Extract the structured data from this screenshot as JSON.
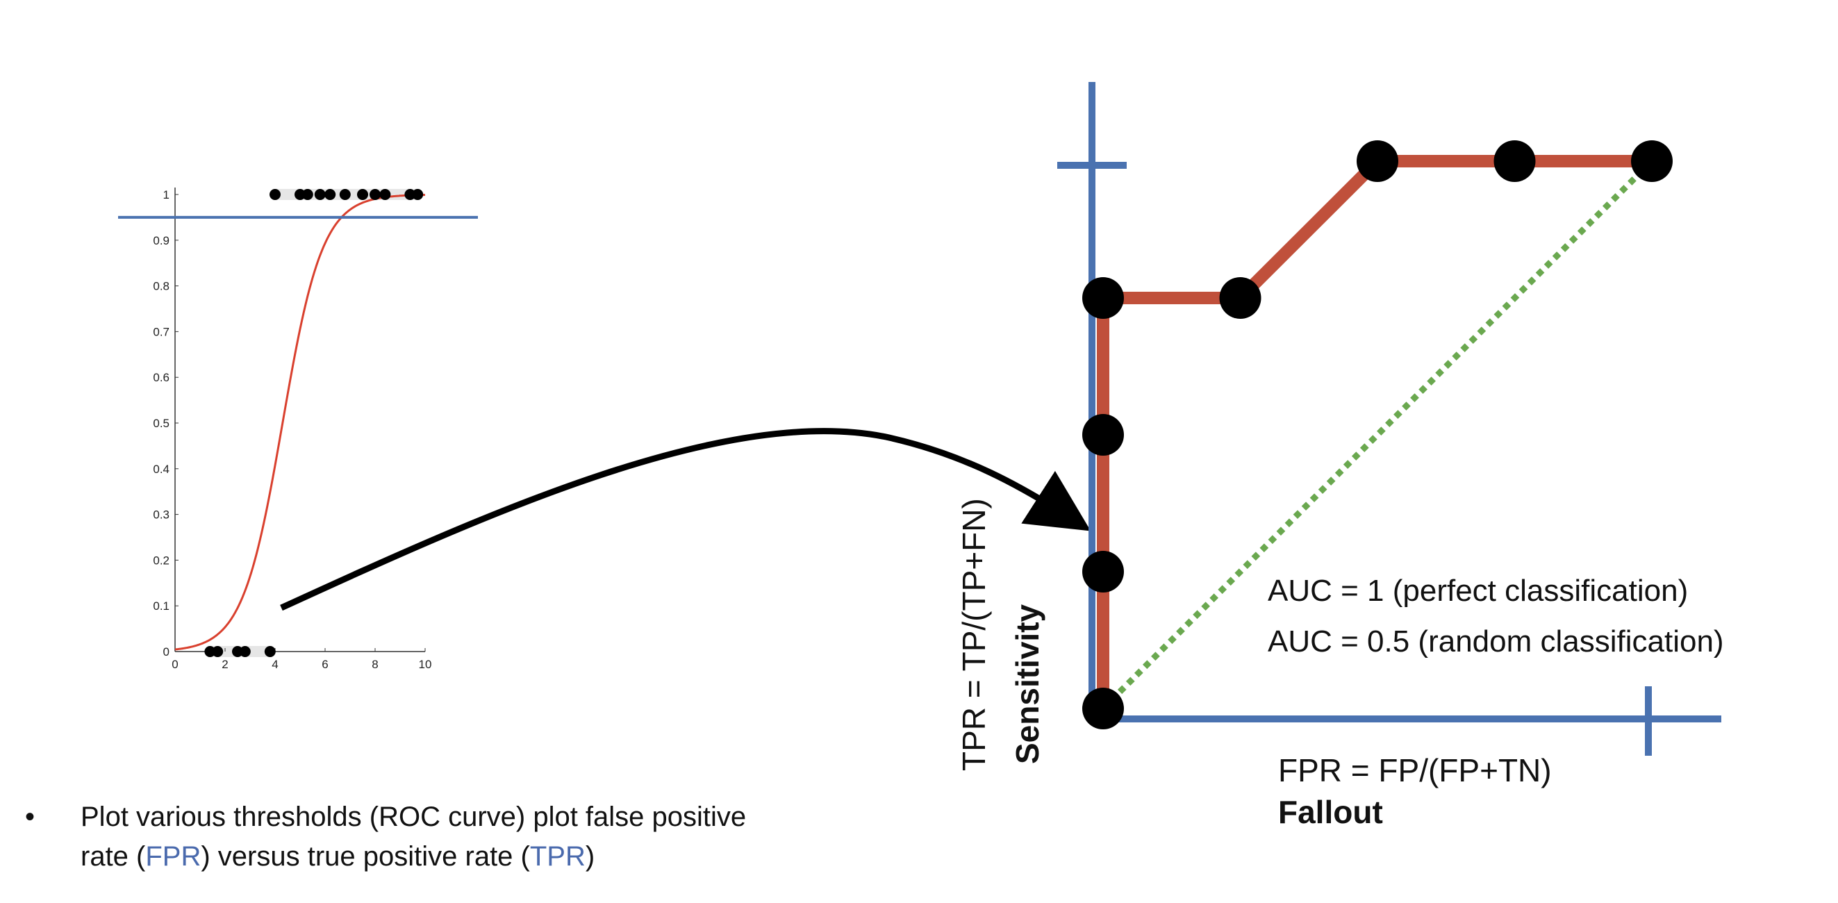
{
  "colors": {
    "curve_red": "#d9402e",
    "roc_red": "#c0503b",
    "axis_blue": "#4a72b0",
    "diagonal_green": "#6aa84f",
    "point_black": "#000000",
    "highlight_blue": "#4a6aad"
  },
  "chart_data": [
    {
      "type": "scatter",
      "title": "",
      "xlabel": "",
      "ylabel": "",
      "xlim": [
        0,
        10
      ],
      "ylim": [
        0,
        1
      ],
      "x_ticks": [
        "0",
        "2",
        "4",
        "6",
        "8",
        "10"
      ],
      "y_ticks": [
        "0",
        "0.1",
        "0.2",
        "0.3",
        "0.4",
        "0.5",
        "0.6",
        "0.7",
        "0.8",
        "0.9",
        "1"
      ],
      "threshold": 0.95,
      "series": [
        {
          "kind": "points",
          "y": 0,
          "x": [
            1.4,
            1.7,
            2.5,
            2.8,
            3.8
          ]
        },
        {
          "kind": "points",
          "y": 1,
          "x": [
            4.0,
            5.0,
            5.3,
            5.8,
            6.2,
            6.8,
            7.5,
            8.0,
            8.4,
            9.4,
            9.7
          ]
        },
        {
          "kind": "logistic_curve",
          "x0": 4.3,
          "k": 1.25
        }
      ]
    },
    {
      "type": "line",
      "title": "",
      "xlabel": "FPR = FP/(FP+TN)",
      "xlabel_sub": "Fallout",
      "ylabel": "TPR = TP/(TP+FN)",
      "ylabel_sub": "Sensitivity",
      "xlim": [
        0,
        1
      ],
      "ylim": [
        0,
        1
      ],
      "roc_points": [
        {
          "x": 0,
          "y": 0
        },
        {
          "x": 0,
          "y": 0.25
        },
        {
          "x": 0,
          "y": 0.5
        },
        {
          "x": 0,
          "y": 0.75
        },
        {
          "x": 0.25,
          "y": 0.75
        },
        {
          "x": 0.5,
          "y": 1
        },
        {
          "x": 0.75,
          "y": 1
        },
        {
          "x": 1,
          "y": 1
        }
      ],
      "diagonal": [
        [
          0,
          0
        ],
        [
          1,
          1
        ]
      ],
      "annotations": [
        "AUC = 1 (perfect classification)",
        "AUC = 0.5 (random classification)"
      ]
    }
  ],
  "bullet": {
    "symbol": "•",
    "line1_a": "Plot various thresholds (ROC curve) plot false positive",
    "line2_a": "rate (",
    "fpr": "FPR",
    "line2_b": ") versus true positive rate (",
    "tpr": "TPR",
    "line2_c": ")"
  }
}
